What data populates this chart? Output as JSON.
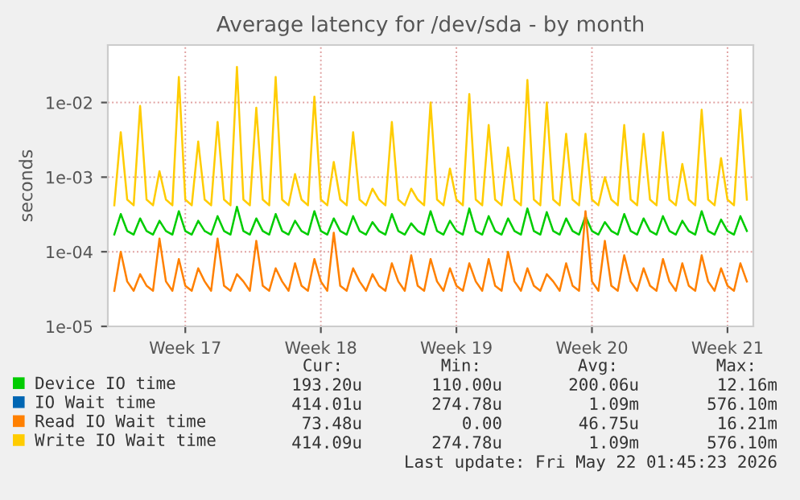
{
  "chart_data": {
    "type": "line",
    "title": "Average latency for /dev/sda - by month",
    "ylabel": "seconds",
    "log": true,
    "categories": [
      null,
      null,
      null,
      null,
      null,
      null,
      null,
      null,
      null,
      null,
      null,
      "Week 17",
      null,
      null,
      null,
      null,
      null,
      null,
      null,
      null,
      null,
      null,
      null,
      null,
      null,
      null,
      null,
      null,
      null,
      null,
      null,
      null,
      "Week 18",
      null,
      null,
      null,
      null,
      null,
      null,
      null,
      null,
      null,
      null,
      null,
      null,
      null,
      null,
      null,
      null,
      null,
      null,
      null,
      null,
      "Week 19",
      null,
      null,
      null,
      null,
      null,
      null,
      null,
      null,
      null,
      null,
      null,
      null,
      null,
      null,
      null,
      null,
      null,
      null,
      null,
      null,
      "Week 20",
      null,
      null,
      null,
      null,
      null,
      null,
      null,
      null,
      null,
      null,
      null,
      null,
      null,
      null,
      null,
      null,
      null,
      null,
      null,
      null,
      "Week 21",
      null,
      null,
      null
    ],
    "ylim": [
      1e-05,
      0.059
    ],
    "yticks": [
      {
        "value": 1e-05,
        "label": "1e-05"
      },
      {
        "value": 0.0001,
        "label": "1e-04"
      },
      {
        "value": 0.001,
        "label": "1e-03"
      },
      {
        "value": 0.01,
        "label": "1e-02"
      }
    ],
    "grid": true,
    "legend": "bottom",
    "series": [
      {
        "name": "Device IO time",
        "color": "#00cc00",
        "values": [
          0.00017,
          0.00032,
          0.00019,
          0.00017,
          0.00028,
          0.00019,
          0.00017,
          0.00026,
          0.00019,
          0.00017,
          0.00035,
          0.00019,
          0.00017,
          0.00026,
          0.00019,
          0.00017,
          0.0003,
          0.00019,
          0.00017,
          0.0004,
          0.00019,
          0.00017,
          0.00028,
          0.00019,
          0.00017,
          0.00032,
          0.00019,
          0.00017,
          0.00026,
          0.00019,
          0.00017,
          0.00035,
          0.00019,
          0.00017,
          0.00028,
          0.00019,
          0.00017,
          0.0003,
          0.00019,
          0.00017,
          0.00025,
          0.00019,
          0.00017,
          0.00032,
          0.00019,
          0.00017,
          0.00024,
          0.00019,
          0.00017,
          0.00035,
          0.00019,
          0.00017,
          0.00026,
          0.00019,
          0.00017,
          0.00038,
          0.00019,
          0.00017,
          0.0003,
          0.00019,
          0.00017,
          0.00028,
          0.00019,
          0.00017,
          0.00038,
          0.00019,
          0.00017,
          0.00034,
          0.00019,
          0.00017,
          0.00028,
          0.00019,
          0.00017,
          0.0003,
          0.00019,
          0.00017,
          0.00025,
          0.00019,
          0.00017,
          0.00032,
          0.00019,
          0.00017,
          0.00028,
          0.00019,
          0.00017,
          0.0003,
          0.00019,
          0.00017,
          0.00026,
          0.00019,
          0.00017,
          0.00035,
          0.00019,
          0.00017,
          0.00027,
          0.00019,
          0.00017,
          0.0003,
          0.00019
        ]
      },
      {
        "name": "IO Wait time",
        "color": "#0066b3",
        "values": [
          null,
          null,
          null,
          null,
          null,
          null,
          null,
          null,
          null,
          null,
          null,
          null,
          null,
          null,
          null,
          null,
          null,
          null,
          null,
          null,
          null,
          null,
          null,
          null,
          null,
          null,
          null,
          null,
          null,
          null,
          null,
          null,
          null,
          null,
          null,
          null,
          null,
          null,
          null,
          null,
          null,
          null,
          null,
          null,
          null,
          null,
          null,
          null,
          null,
          null,
          null,
          null,
          null,
          null,
          null,
          null,
          null,
          null,
          null,
          null,
          null,
          null,
          null,
          null,
          null,
          null,
          null,
          null,
          null,
          null,
          null,
          null,
          null,
          null,
          null,
          null,
          null,
          null,
          null,
          null,
          null,
          null,
          null,
          null,
          null,
          null,
          null,
          null,
          null,
          null,
          null,
          null,
          null,
          null,
          null,
          null,
          null,
          null,
          null
        ]
      },
      {
        "name": "Read IO Wait time",
        "color": "#ff8000",
        "values": [
          3e-05,
          0.0001,
          4e-05,
          3e-05,
          5e-05,
          3.5e-05,
          3e-05,
          0.00015,
          4e-05,
          3e-05,
          8e-05,
          3.5e-05,
          3e-05,
          6e-05,
          4e-05,
          3e-05,
          0.00015,
          3.5e-05,
          3e-05,
          5e-05,
          4e-05,
          3e-05,
          0.00014,
          3.5e-05,
          3e-05,
          6e-05,
          4e-05,
          3e-05,
          7e-05,
          3.5e-05,
          3e-05,
          8e-05,
          4e-05,
          3e-05,
          0.00018,
          3.5e-05,
          3e-05,
          6e-05,
          4e-05,
          3e-05,
          5e-05,
          3.5e-05,
          3e-05,
          7e-05,
          4e-05,
          3e-05,
          9e-05,
          3.5e-05,
          3e-05,
          8e-05,
          4e-05,
          3e-05,
          6e-05,
          3.5e-05,
          3e-05,
          7e-05,
          4e-05,
          3e-05,
          8e-05,
          3.5e-05,
          3e-05,
          0.0001,
          4e-05,
          3e-05,
          6e-05,
          3.5e-05,
          3e-05,
          5e-05,
          4e-05,
          3e-05,
          7e-05,
          3.5e-05,
          3e-05,
          0.00035,
          4e-05,
          3e-05,
          0.00014,
          3.5e-05,
          3e-05,
          9e-05,
          4e-05,
          3e-05,
          6e-05,
          3.5e-05,
          3e-05,
          8e-05,
          4e-05,
          3e-05,
          7e-05,
          3.5e-05,
          3e-05,
          9e-05,
          4e-05,
          3e-05,
          6e-05,
          3.5e-05,
          3e-05,
          7e-05,
          4e-05
        ]
      },
      {
        "name": "Write IO Wait time",
        "color": "#ffcc00",
        "values": [
          0.00042,
          0.004,
          0.0005,
          0.00042,
          0.009,
          0.0005,
          0.00042,
          0.0012,
          0.0005,
          0.00042,
          0.022,
          0.0005,
          0.00042,
          0.003,
          0.0005,
          0.00042,
          0.0055,
          0.0005,
          0.00042,
          0.03,
          0.0005,
          0.00042,
          0.0085,
          0.0005,
          0.00042,
          0.022,
          0.0005,
          0.00042,
          0.0011,
          0.0005,
          0.00042,
          0.012,
          0.0005,
          0.00042,
          0.0016,
          0.0005,
          0.00042,
          0.004,
          0.0005,
          0.00042,
          0.0007,
          0.0005,
          0.00042,
          0.0055,
          0.0005,
          0.00042,
          0.0007,
          0.0005,
          0.00042,
          0.01,
          0.0005,
          0.00042,
          0.0013,
          0.0005,
          0.00042,
          0.013,
          0.0005,
          0.00042,
          0.005,
          0.0005,
          0.00042,
          0.0025,
          0.0005,
          0.00042,
          0.02,
          0.0005,
          0.00042,
          0.01,
          0.0005,
          0.00042,
          0.0038,
          0.0005,
          0.00042,
          0.0038,
          0.0005,
          0.00042,
          0.001,
          0.0005,
          0.00042,
          0.005,
          0.0005,
          0.00042,
          0.0038,
          0.0005,
          0.00042,
          0.004,
          0.0005,
          0.00042,
          0.0015,
          0.0005,
          0.00042,
          0.008,
          0.0005,
          0.00042,
          0.0018,
          0.0005,
          0.00042,
          0.008,
          0.0005
        ]
      }
    ],
    "annotations": [
      "Cur:",
      "Min:",
      "Avg:",
      "Max:",
      "193.20u",
      "110.00u",
      "200.06u",
      "12.16m",
      "414.01u",
      "274.78u",
      "1.09m",
      "576.10m",
      "73.48u",
      "0.00",
      "46.75u",
      "16.21m",
      "414.09u",
      "274.78u",
      "1.09m",
      "576.10m",
      "Last update: Fri May 22 01:45:23 2026"
    ]
  }
}
